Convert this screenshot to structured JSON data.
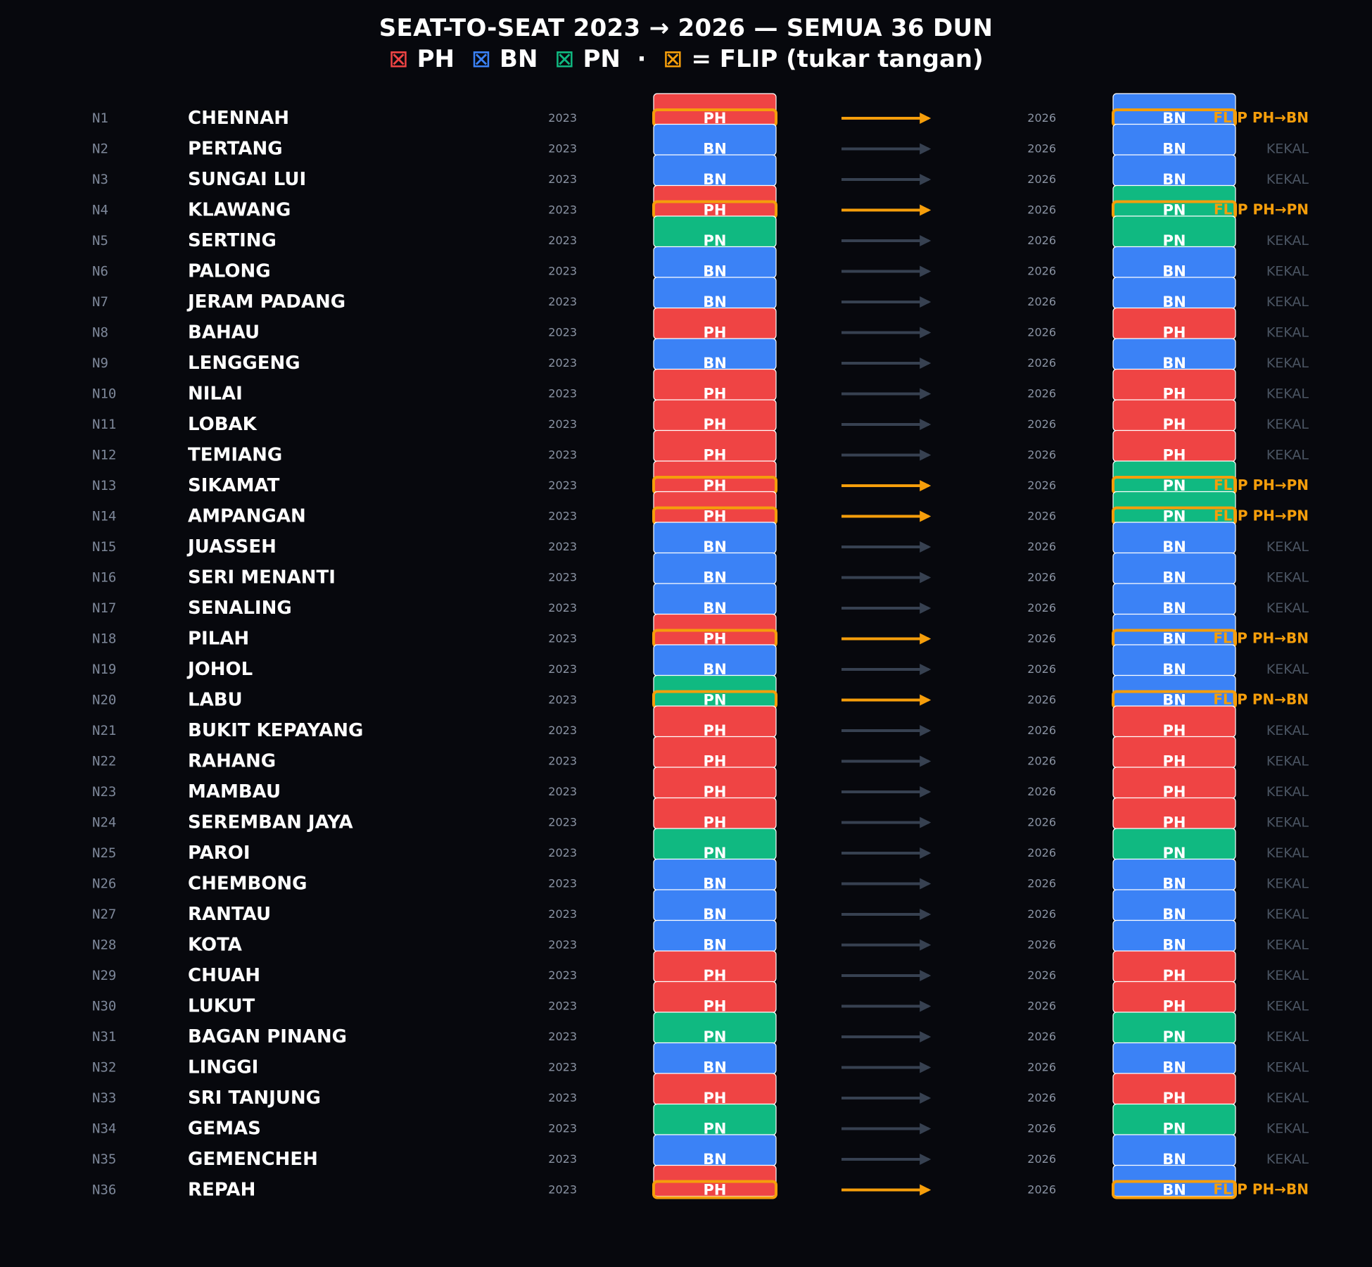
{
  "header": {
    "title": "SEAT-TO-SEAT 2023 → 2026 — SEMUA 36 DUN",
    "legend_icon": "⊠",
    "legend": {
      "ph": "PH",
      "bn": "BN",
      "pn": "PN",
      "separator": "·",
      "flip": "= FLIP (tukar tangan)"
    }
  },
  "colors": {
    "PH": "#ef4444",
    "BN": "#3b82f6",
    "PN": "#10b981",
    "flip": "#f59e0b",
    "arrow": "#374151",
    "background": "#07080d"
  },
  "chart_data": {
    "type": "table",
    "from_year": "2023",
    "to_year": "2026",
    "kekal_label": "KEKAL",
    "flip_label_prefix": "FLIP",
    "flip_arrow": "→",
    "seats": [
      {
        "id": "N1",
        "name": "CHENNAH",
        "y2023": "PH",
        "y2026": "BN"
      },
      {
        "id": "N2",
        "name": "PERTANG",
        "y2023": "BN",
        "y2026": "BN"
      },
      {
        "id": "N3",
        "name": "SUNGAI LUI",
        "y2023": "BN",
        "y2026": "BN"
      },
      {
        "id": "N4",
        "name": "KLAWANG",
        "y2023": "PH",
        "y2026": "PN"
      },
      {
        "id": "N5",
        "name": "SERTING",
        "y2023": "PN",
        "y2026": "PN"
      },
      {
        "id": "N6",
        "name": "PALONG",
        "y2023": "BN",
        "y2026": "BN"
      },
      {
        "id": "N7",
        "name": "JERAM PADANG",
        "y2023": "BN",
        "y2026": "BN"
      },
      {
        "id": "N8",
        "name": "BAHAU",
        "y2023": "PH",
        "y2026": "PH"
      },
      {
        "id": "N9",
        "name": "LENGGENG",
        "y2023": "BN",
        "y2026": "BN"
      },
      {
        "id": "N10",
        "name": "NILAI",
        "y2023": "PH",
        "y2026": "PH"
      },
      {
        "id": "N11",
        "name": "LOBAK",
        "y2023": "PH",
        "y2026": "PH"
      },
      {
        "id": "N12",
        "name": "TEMIANG",
        "y2023": "PH",
        "y2026": "PH"
      },
      {
        "id": "N13",
        "name": "SIKAMAT",
        "y2023": "PH",
        "y2026": "PN"
      },
      {
        "id": "N14",
        "name": "AMPANGAN",
        "y2023": "PH",
        "y2026": "PN"
      },
      {
        "id": "N15",
        "name": "JUASSEH",
        "y2023": "BN",
        "y2026": "BN"
      },
      {
        "id": "N16",
        "name": "SERI MENANTI",
        "y2023": "BN",
        "y2026": "BN"
      },
      {
        "id": "N17",
        "name": "SENALING",
        "y2023": "BN",
        "y2026": "BN"
      },
      {
        "id": "N18",
        "name": "PILAH",
        "y2023": "PH",
        "y2026": "BN"
      },
      {
        "id": "N19",
        "name": "JOHOL",
        "y2023": "BN",
        "y2026": "BN"
      },
      {
        "id": "N20",
        "name": "LABU",
        "y2023": "PN",
        "y2026": "BN"
      },
      {
        "id": "N21",
        "name": "BUKIT KEPAYANG",
        "y2023": "PH",
        "y2026": "PH"
      },
      {
        "id": "N22",
        "name": "RAHANG",
        "y2023": "PH",
        "y2026": "PH"
      },
      {
        "id": "N23",
        "name": "MAMBAU",
        "y2023": "PH",
        "y2026": "PH"
      },
      {
        "id": "N24",
        "name": "SEREMBAN JAYA",
        "y2023": "PH",
        "y2026": "PH"
      },
      {
        "id": "N25",
        "name": "PAROI",
        "y2023": "PN",
        "y2026": "PN"
      },
      {
        "id": "N26",
        "name": "CHEMBONG",
        "y2023": "BN",
        "y2026": "BN"
      },
      {
        "id": "N27",
        "name": "RANTAU",
        "y2023": "BN",
        "y2026": "BN"
      },
      {
        "id": "N28",
        "name": "KOTA",
        "y2023": "BN",
        "y2026": "BN"
      },
      {
        "id": "N29",
        "name": "CHUAH",
        "y2023": "PH",
        "y2026": "PH"
      },
      {
        "id": "N30",
        "name": "LUKUT",
        "y2023": "PH",
        "y2026": "PH"
      },
      {
        "id": "N31",
        "name": "BAGAN PINANG",
        "y2023": "PN",
        "y2026": "PN"
      },
      {
        "id": "N32",
        "name": "LINGGI",
        "y2023": "BN",
        "y2026": "BN"
      },
      {
        "id": "N33",
        "name": "SRI TANJUNG",
        "y2023": "PH",
        "y2026": "PH"
      },
      {
        "id": "N34",
        "name": "GEMAS",
        "y2023": "PN",
        "y2026": "PN"
      },
      {
        "id": "N35",
        "name": "GEMENCHEH",
        "y2023": "BN",
        "y2026": "BN"
      },
      {
        "id": "N36",
        "name": "REPAH",
        "y2023": "PH",
        "y2026": "BN"
      }
    ]
  }
}
